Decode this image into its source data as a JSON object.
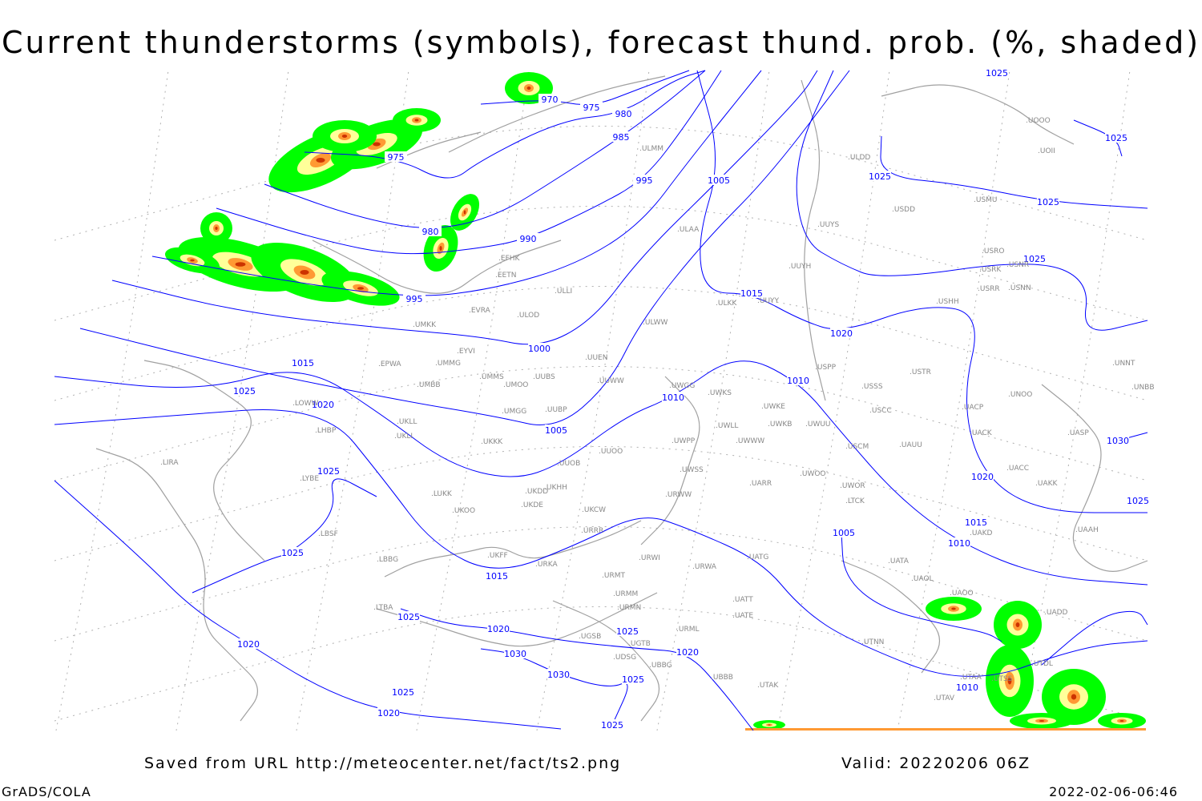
{
  "title": "Current thunderstorms (symbols), forecast thund. prob. (%, shaded)",
  "footer": {
    "saved": "Saved from URL http://meteocenter.net/fact/ts2.png",
    "valid": "Valid: 20220206 06Z",
    "software": "GrADS/COLA",
    "timestamp": "2022-02-06-06:46"
  },
  "colors": {
    "isobar": "#0000ff",
    "coastline": "#a0a0a0",
    "grid": "#b0b0b0",
    "prob_low": "#00ff00",
    "prob_mid": "#ffff99",
    "prob_high": "#ff9933",
    "prob_max": "#cc3300"
  },
  "isobar_labels": [
    "970",
    "975",
    "975",
    "980",
    "980",
    "985",
    "990",
    "995",
    "995",
    "1000",
    "1005",
    "1005",
    "1005",
    "1010",
    "1010",
    "1010",
    "1010",
    "1015",
    "1015",
    "1015",
    "1015",
    "1020",
    "1020",
    "1020",
    "1020",
    "1020",
    "1020",
    "1020",
    "1025",
    "1025",
    "1025",
    "1025",
    "1025",
    "1025",
    "1025",
    "1025",
    "1025",
    "1025",
    "1025",
    "1025",
    "1025",
    "1025",
    "1030",
    "1030",
    "1030"
  ],
  "stations": [
    "EFHK",
    "EETN",
    "EVRA",
    "ULOD",
    "ULLI",
    "UMKK",
    "EYVI",
    "UMMG",
    "EPWA",
    "UMBB",
    "UMMS",
    "UMOO",
    "UUBS",
    "UUEN",
    "UUWW",
    "UUBP",
    "UMGG",
    "UKLL",
    "UKLI",
    "UKKK",
    "LHBP",
    "LIRA",
    "LYBE",
    "LBSF",
    "LBBG",
    "LTBA",
    "UKOO",
    "UKFF",
    "URKA",
    "UKHH",
    "UKDD",
    "UKDE",
    "UKCW",
    "URRR",
    "UUOB",
    "UUOO",
    "LUKK",
    "ULWW",
    "ULAA",
    "ULMM",
    "ULKK",
    "UUYY",
    "UUYH",
    "UUYS",
    "ULDD",
    "USDD",
    "USMU",
    "UOOO",
    "UOII",
    "USRO",
    "USRK",
    "USNR",
    "USRR",
    "USNN",
    "USHH",
    "USPP",
    "USTR",
    "USSS",
    "USCC",
    "USCM",
    "UAUU",
    "UACP",
    "UACK",
    "UNOO",
    "UNNT",
    "UNBB",
    "UASP",
    "UACC",
    "UAKK",
    "UAAH",
    "UAKD",
    "UATA",
    "UAOL",
    "UAOO",
    "UADD",
    "UTSS",
    "UTDL",
    "UTAA",
    "UTAV",
    "UTNN",
    "UATG",
    "UATE",
    "UATT",
    "URWA",
    "URWI",
    "URMT",
    "URMM",
    "URMN",
    "UGSB",
    "UGTB",
    "UDSG",
    "UBBG",
    "URML",
    "UBBB",
    "UTAK",
    "UWGG",
    "UWKS",
    "UWKE",
    "UWKB",
    "UWUU",
    "UWWW",
    "UWPP",
    "UWSS",
    "UWLL",
    "UARR",
    "UWOO",
    "UWOR",
    "URWW",
    "LTCK",
    "LOWW"
  ]
}
